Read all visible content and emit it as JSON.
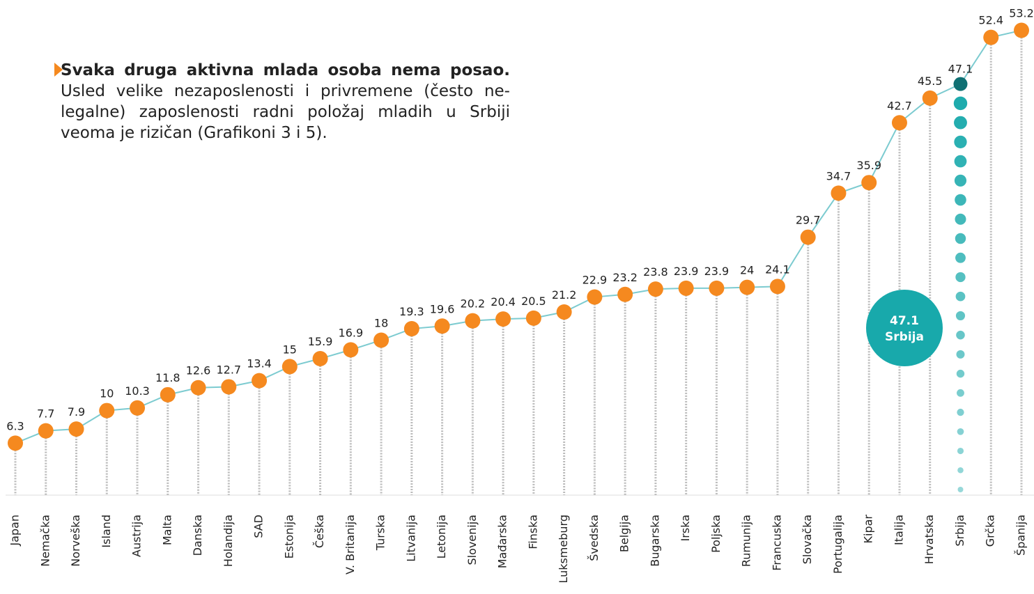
{
  "text": {
    "bold": "Svaka druga aktivna mlada osoba nema posao.",
    "body": "Usled velike nezaposlenosti i privremene (često ne-legalne) zaposlenosti radni položaj mladih u Srbiji veoma je rizičan (Grafikoni 3 i 5)."
  },
  "chart_data": {
    "type": "line",
    "categories": [
      "Japan",
      "Nemačka",
      "Norveška",
      "Island",
      "Austrija",
      "Malta",
      "Danska",
      "Holandija",
      "SAD",
      "Estonija",
      "Češka",
      "V. Britanija",
      "Turska",
      "Litvanija",
      "Letonija",
      "Slovenija",
      "Mađarska",
      "Finska",
      "Luksmeburg",
      "Švedska",
      "Belgija",
      "Bugarska",
      "Irska",
      "Poljska",
      "Rumunija",
      "Francuska",
      "Slovačka",
      "Portugalija",
      "Kipar",
      "Italija",
      "Hrvatska",
      "Srbija",
      "Grčka",
      "Španija"
    ],
    "values": [
      6.3,
      7.7,
      7.9,
      10,
      10.3,
      11.8,
      12.6,
      12.7,
      13.4,
      15,
      15.9,
      16.9,
      18,
      19.3,
      19.6,
      20.2,
      20.4,
      20.5,
      21.2,
      22.9,
      23.2,
      23.8,
      23.9,
      23.9,
      24,
      24.1,
      29.7,
      34.7,
      35.9,
      42.7,
      45.5,
      47.1,
      52.4,
      53.2
    ],
    "color": "#7ccbd0",
    "marker_color": "#f5891f",
    "highlight_color": "#18a9ab",
    "highlight_index": 31
  }
}
